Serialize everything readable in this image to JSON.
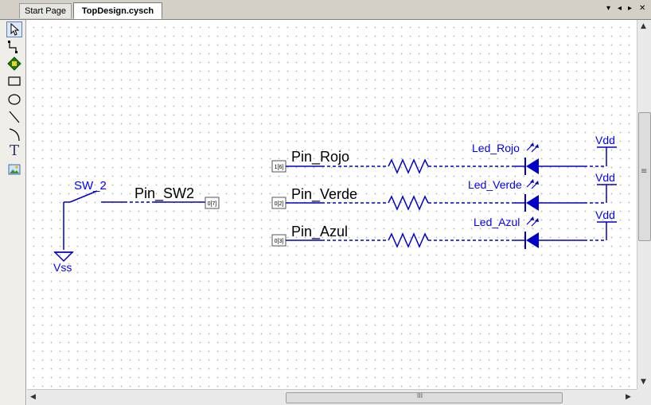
{
  "tabs": [
    {
      "label": "Start Page",
      "active": false
    },
    {
      "label": "TopDesign.cysch",
      "active": true
    }
  ],
  "tab_controls": {
    "menu": "▾",
    "prev": "◂",
    "next": "▸",
    "close": "✕"
  },
  "toolbox": [
    "pointer-tool",
    "wire-tool",
    "component-tool",
    "rectangle-tool",
    "ellipse-tool",
    "line-tool",
    "arc-tool",
    "text-tool",
    "image-tool"
  ],
  "toolbox_text_glyph": "T",
  "scroll_grip": "≡",
  "scroll_grip_h": "III",
  "schematic": {
    "switch": {
      "name": "SW_2",
      "ground": "Vss",
      "pin_name": "Pin_SW2",
      "pin_id": "0[7]"
    },
    "channels": [
      {
        "pin_name": "Pin_Rojo",
        "pin_id": "1[6]",
        "led": "Led_Rojo",
        "supply": "Vdd"
      },
      {
        "pin_name": "Pin_Verde",
        "pin_id": "0[2]",
        "led": "Led_Verde",
        "supply": "Vdd"
      },
      {
        "pin_name": "Pin_Azul",
        "pin_id": "0[3]",
        "led": "Led_Azul",
        "supply": "Vdd"
      }
    ]
  },
  "colors": {
    "wire": "#0000cc",
    "label": "#000000",
    "component_text": "#0000ff",
    "pin_box": "#555555"
  }
}
